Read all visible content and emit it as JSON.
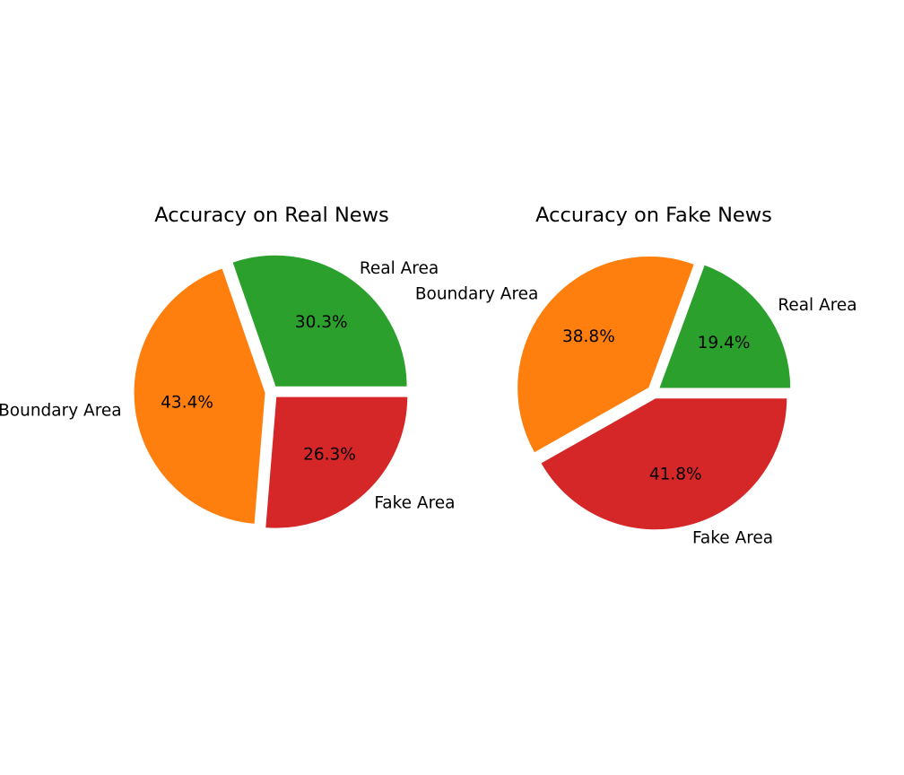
{
  "chart_data": [
    {
      "type": "pie",
      "title": "Accuracy on Real News",
      "slices": [
        {
          "label": "Real Area",
          "value": 30.3,
          "pct_label": "30.3%",
          "color": "#2ca02c"
        },
        {
          "label": "Boundary Area",
          "value": 43.4,
          "pct_label": "43.4%",
          "color": "#ff7f0e"
        },
        {
          "label": "Fake Area",
          "value": 26.3,
          "pct_label": "26.3%",
          "color": "#d62728"
        }
      ]
    },
    {
      "type": "pie",
      "title": "Accuracy on Fake News",
      "slices": [
        {
          "label": "Real Area",
          "value": 19.4,
          "pct_label": "19.4%",
          "color": "#2ca02c"
        },
        {
          "label": "Boundary Area",
          "value": 38.8,
          "pct_label": "38.8%",
          "color": "#ff7f0e"
        },
        {
          "label": "Fake Area",
          "value": 41.8,
          "pct_label": "41.8%",
          "color": "#d62728"
        }
      ]
    }
  ]
}
